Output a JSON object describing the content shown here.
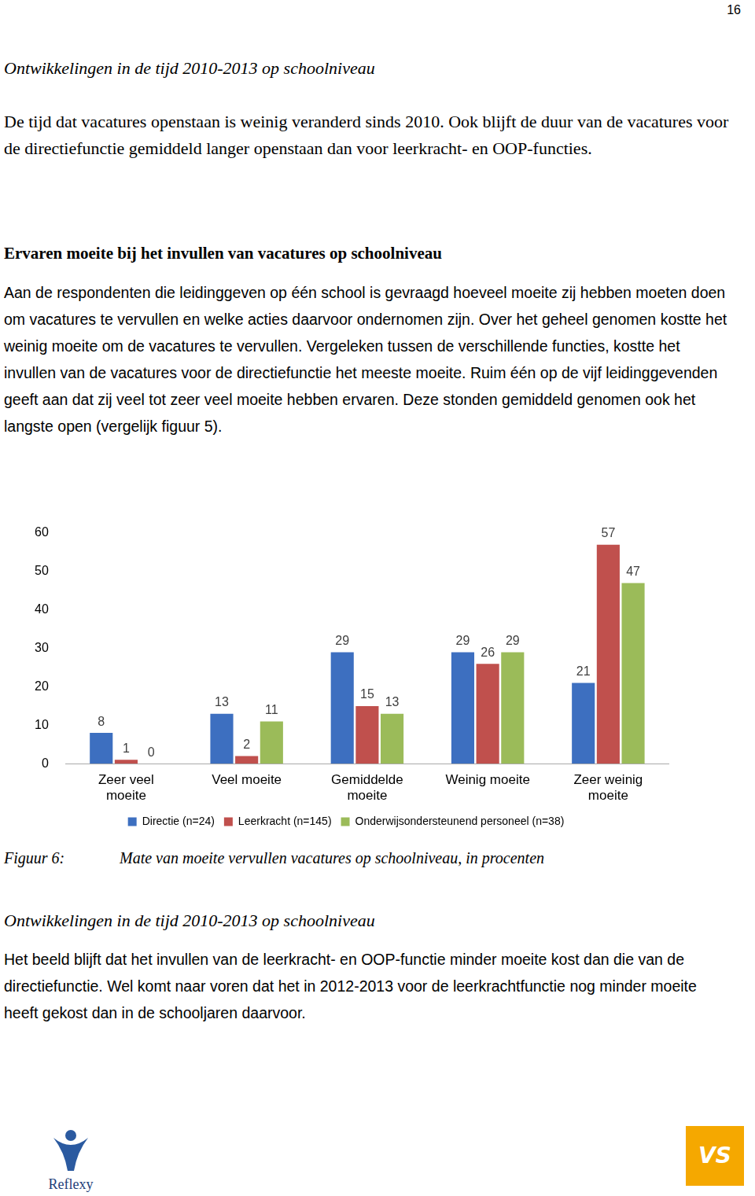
{
  "page": {
    "page_number": "16",
    "before_chart": [
      {
        "style": "subheading",
        "text": "Ontwikkelingen in de tijd 2010-2013 op schoolniveau"
      },
      {
        "style": "serifpara",
        "text": "De tijd dat vacatures openstaan is weinig veranderd sinds 2010. Ook blijft de duur van de vacatures voor de directiefunctie gemiddeld langer openstaan dan voor leerkracht- en OOP-functies."
      },
      {
        "style": "heading",
        "text": "Ervaren moeite bij het invullen van vacatures op schoolniveau"
      },
      {
        "style": "sanspara",
        "text": "Aan de respondenten die leidinggeven op één school is gevraagd hoeveel moeite zij hebben moeten doen om vacatures te vervullen en welke acties daarvoor ondernomen zijn. Over het geheel genomen kostte het weinig moeite om de vacatures te vervullen. Vergeleken tussen de verschillende functies, kostte het invullen van de vacatures voor de directiefunctie het meeste moeite. Ruim één op de vijf leidinggevenden geeft aan dat zij veel tot zeer veel moeite hebben ervaren. Deze stonden gemiddeld genomen ook het langste open (vergelijk figuur 5)."
      }
    ],
    "figure_caption": {
      "label": "Figuur 6:",
      "text": "Mate van moeite vervullen vacatures op schoolniveau, in procenten"
    },
    "after_chart": [
      {
        "style": "subheading",
        "text": "Ontwikkelingen in de tijd 2010-2013 op schoolniveau"
      },
      {
        "style": "sanspara",
        "text": "Het beeld blijft dat het invullen van de leerkracht- en OOP-functie minder moeite kost dan die van de directiefunctie. Wel komt naar voren dat het in 2012-2013 voor de leerkrachtfunctie nog minder moeite heeft gekost dan in de schooljaren daarvoor."
      }
    ],
    "footer_logos": {
      "left": "Reflexy",
      "right": "VS"
    }
  },
  "chart_data": {
    "type": "bar",
    "categories": [
      "Zeer veel moeite",
      "Veel moeite",
      "Gemiddelde moeite",
      "Weinig moeite",
      "Zeer weinig moeite"
    ],
    "series": [
      {
        "name": "Directie (n=24)",
        "color": "#3d6fc0",
        "values": [
          8,
          13,
          29,
          29,
          21
        ]
      },
      {
        "name": "Leerkracht (n=145)",
        "color": "#c0504d",
        "values": [
          1,
          2,
          15,
          26,
          57
        ]
      },
      {
        "name": "Onderwijsondersteunend personeel (n=38)",
        "color": "#9bbb59",
        "values": [
          0,
          11,
          13,
          29,
          47
        ]
      }
    ],
    "ylim": [
      0,
      60
    ],
    "yticks": [
      0,
      10,
      20,
      30,
      40,
      50,
      60
    ],
    "grid": false,
    "legend": "bottom",
    "data_labels": true
  }
}
